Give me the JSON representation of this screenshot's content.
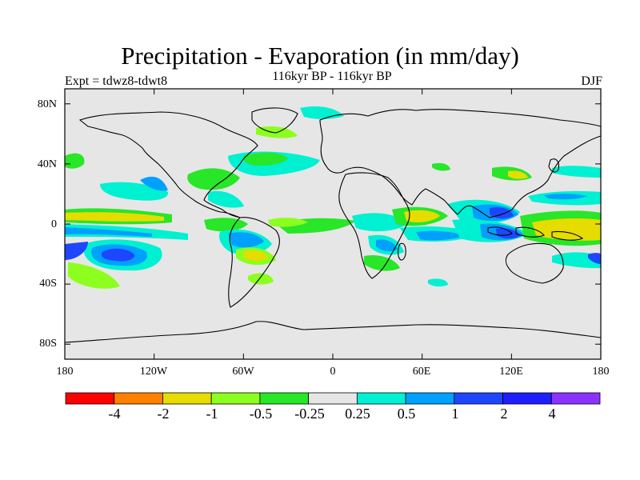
{
  "title": "Precipitation - Evaporation (in mm/day)",
  "subtitle": "116kyr BP - 116kyr BP",
  "experiment_label": "Expt = tdwz8-tdwt8",
  "season_label": "DJF",
  "map": {
    "projection": "cylindrical equidistant",
    "background_color": "#e6e6e6",
    "lat_ticks": [
      "80N",
      "40N",
      "0",
      "40S",
      "80S"
    ],
    "lat_values": [
      80,
      40,
      0,
      -40,
      -80
    ],
    "lon_ticks": [
      "180",
      "120W",
      "60W",
      "0",
      "60E",
      "120E",
      "180"
    ],
    "lon_values": [
      -180,
      -120,
      -60,
      0,
      60,
      120,
      180
    ]
  },
  "colorbar": {
    "colors": [
      "#ff0000",
      "#ff8000",
      "#e6dc00",
      "#8cff1e",
      "#28e628",
      "#e6e6e6",
      "#00f0d2",
      "#00a0ff",
      "#1e46ff",
      "#1e1eff",
      "#8c32ff"
    ],
    "labels": [
      "-4",
      "-2",
      "-1",
      "-0.5",
      "-0.25",
      "0.25",
      "0.5",
      "1",
      "2",
      "4"
    ]
  }
}
